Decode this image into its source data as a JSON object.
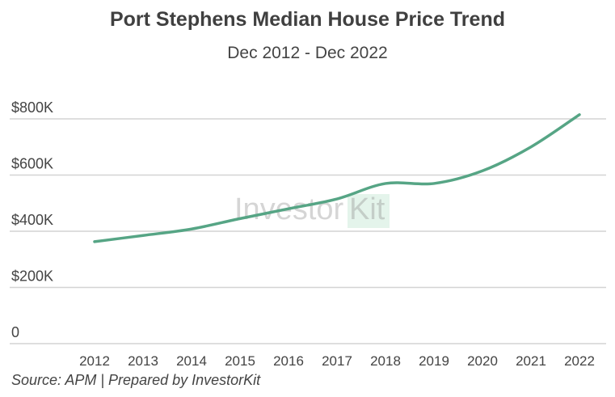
{
  "chart_data": {
    "type": "line",
    "title": "Port Stephens Median House Price Trend",
    "subtitle": "Dec 2012 - Dec 2022",
    "source": "Source: APM | Prepared by InvestorKit",
    "watermark": {
      "part1": "Investor",
      "part2": "Kit"
    },
    "xlabel": "",
    "ylabel": "",
    "ylim": [
      0,
      800000
    ],
    "yticks": [
      {
        "value": 0,
        "label": "0"
      },
      {
        "value": 200000,
        "label": "$200K"
      },
      {
        "value": 400000,
        "label": "$400K"
      },
      {
        "value": 600000,
        "label": "$600K"
      },
      {
        "value": 800000,
        "label": "$800K"
      }
    ],
    "grid": true,
    "legend": "none",
    "x": [
      "2012",
      "2013",
      "2014",
      "2015",
      "2016",
      "2017",
      "2018",
      "2019",
      "2020",
      "2021",
      "2022"
    ],
    "series": [
      {
        "color": "#56a585",
        "values": [
          363000,
          385000,
          408000,
          445000,
          480000,
          515000,
          570000,
          570000,
          615000,
          700000,
          815000
        ]
      }
    ]
  }
}
